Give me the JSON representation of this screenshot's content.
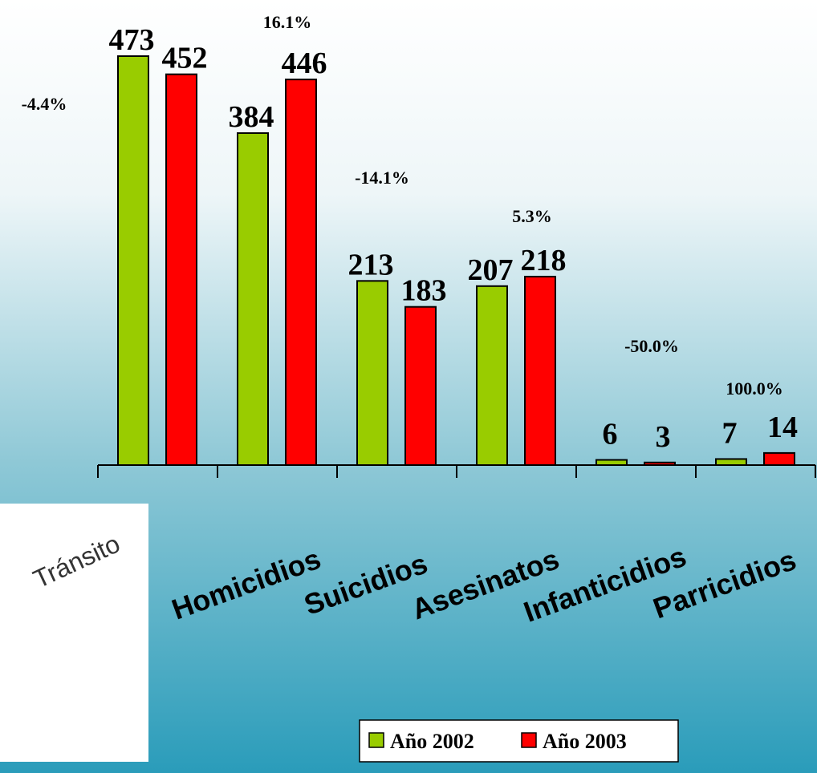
{
  "chart_data": {
    "type": "bar",
    "categories": [
      "Tránsito",
      "Homicidios",
      "Suicidios",
      "Asesinatos",
      "Infanticidios",
      "Parricidios"
    ],
    "series": [
      {
        "name": "Año 2002",
        "color": "#99cc00",
        "values": [
          473,
          384,
          213,
          207,
          6,
          7
        ]
      },
      {
        "name": "Año 2003",
        "color": "#ff0000",
        "values": [
          452,
          446,
          183,
          218,
          3,
          14
        ]
      }
    ],
    "annotations": [
      "-4.4%",
      "16.1%",
      "-14.1%",
      "5.3%",
      "-50.0%",
      "100.0%"
    ],
    "legend": "bottom-right"
  }
}
